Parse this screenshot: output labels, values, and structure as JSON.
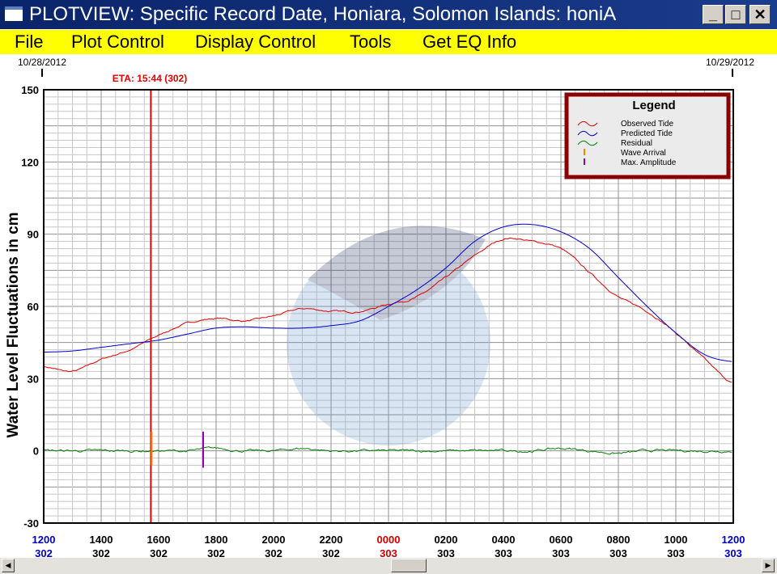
{
  "window": {
    "title": "PLOTVIEW: Specific Record Date, Honiara, Solomon Islands: honiA",
    "minimize": "_",
    "maximize": "□",
    "close": "✕"
  },
  "menu": [
    "File",
    "Plot Control",
    "Display Control",
    "Tools",
    "Get EQ Info"
  ],
  "colors": {
    "observed": "#e00000",
    "predicted": "#0000d0",
    "residual": "#008000",
    "arrival": "#ff8000",
    "max_amp": "#9000a0",
    "eta": "#e00000",
    "legend_border": "#8b0000"
  },
  "chart_data": {
    "type": "line",
    "ylabel": "Water Level Fluctuations in cm",
    "ylim": [
      -30,
      150
    ],
    "yticks": [
      150,
      120,
      90,
      60,
      30,
      0,
      -30
    ],
    "date_start": "10/28/2012",
    "date_end": "10/29/2012",
    "eta_label": "ETA: 15:44 (302)",
    "eta_hours_from_start": 3.73,
    "max_amplitude_hours_from_start": 5.55,
    "x_unit": "hours from 1200 day 302",
    "xlim": [
      0,
      24
    ],
    "xticks": [
      {
        "time": "1200",
        "day": "302",
        "color": "#0000c0"
      },
      {
        "time": "1400",
        "day": "302",
        "color": "#000"
      },
      {
        "time": "1600",
        "day": "302",
        "color": "#000"
      },
      {
        "time": "1800",
        "day": "302",
        "color": "#000"
      },
      {
        "time": "2000",
        "day": "302",
        "color": "#000"
      },
      {
        "time": "2200",
        "day": "302",
        "color": "#000"
      },
      {
        "time": "0000",
        "day": "303",
        "color": "#d00000"
      },
      {
        "time": "0200",
        "day": "303",
        "color": "#000"
      },
      {
        "time": "0400",
        "day": "303",
        "color": "#000"
      },
      {
        "time": "0600",
        "day": "303",
        "color": "#000"
      },
      {
        "time": "0800",
        "day": "303",
        "color": "#000"
      },
      {
        "time": "1000",
        "day": "303",
        "color": "#000"
      },
      {
        "time": "1200",
        "day": "303",
        "color": "#0000c0"
      }
    ],
    "series": [
      {
        "name": "Observed Tide",
        "values": [
          35,
          33,
          38,
          42,
          48,
          53,
          55,
          54,
          56,
          59,
          58,
          58,
          61,
          64,
          72,
          81,
          88,
          87,
          84,
          74,
          64,
          58,
          49,
          38,
          28
        ]
      },
      {
        "name": "Predicted Tide",
        "values": [
          41,
          41.5,
          43,
          44.5,
          46,
          48.5,
          51,
          51.5,
          51,
          51,
          52,
          54,
          60,
          67,
          76,
          87,
          93,
          94,
          91,
          84,
          72,
          60,
          49,
          40,
          37
        ]
      },
      {
        "name": "Residual",
        "values": [
          0,
          0,
          0,
          0,
          0,
          0,
          1,
          0,
          0,
          1,
          0,
          0,
          0,
          0,
          0,
          0,
          0,
          0,
          1,
          0,
          -1,
          0,
          0,
          0,
          0
        ]
      }
    ],
    "legend": {
      "title": "Legend",
      "placement": "top-right",
      "entries": [
        "Observed Tide",
        "Predicted Tide",
        "Residual",
        "Wave Arrival",
        "Max. Amplitude"
      ]
    }
  }
}
